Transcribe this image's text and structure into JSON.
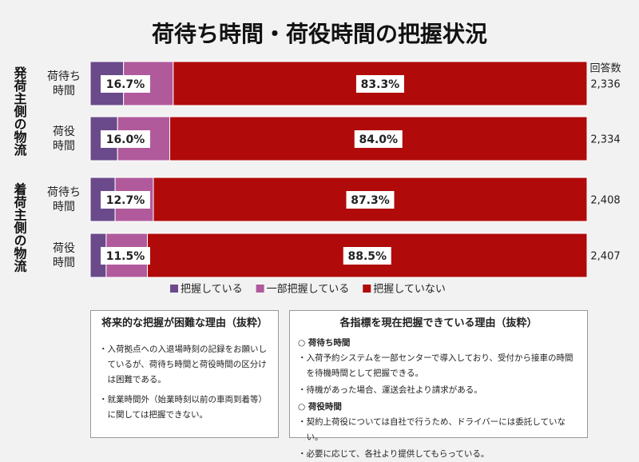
{
  "chart_data": {
    "type": "stacked_barh",
    "title": "荷待ち時間・荷役時間の把握状況",
    "groups": [
      {
        "label": "発荷主側の物流",
        "rows": [
          0,
          1
        ]
      },
      {
        "label": "着荷主側の物流",
        "rows": [
          2,
          3
        ]
      }
    ],
    "categories": [
      "荷待ち\n時間",
      "荷役\n時間",
      "荷待ち\n時間",
      "荷役\n時間"
    ],
    "series": [
      {
        "name": "把握している",
        "color": "#6a4a8a",
        "values": [
          6.7,
          5.5,
          5.0,
          3.2
        ]
      },
      {
        "name": "一部把握している",
        "color": "#b05a9c",
        "values": [
          10.0,
          10.5,
          7.7,
          8.3
        ]
      },
      {
        "name": "把握していない",
        "color": "#b00a0a",
        "values": [
          83.3,
          84.0,
          87.3,
          88.5
        ],
        "value_labels": [
          "83.3%",
          "84.0%",
          "87.3%",
          "88.5%"
        ]
      }
    ],
    "aware_total": {
      "values": [
        16.7,
        16.0,
        12.7,
        11.5
      ],
      "value_labels": [
        "16.7%",
        "16.0%",
        "12.7%",
        "11.5%"
      ]
    },
    "responses": {
      "label": "回答数",
      "values": [
        2336,
        2334,
        2408,
        2407
      ],
      "value_labels": [
        "2,336",
        "2,334",
        "2,408",
        "2,407"
      ]
    },
    "legend": "bottom"
  },
  "notes": {
    "left": {
      "title": "将来的な把握が困難な理由（抜粋）",
      "items": [
        "・入荷拠点への入退場時刻の記録をお願いしているが、荷待ち時間と荷役時間の区分けは困難である。",
        "・就業時間外（始業時刻以前の車両到着等）に関しては把握できない。"
      ]
    },
    "right": {
      "title": "各指標を現在把握できている理由（抜粋）",
      "sections": [
        {
          "heading": "○ 荷待ち時間",
          "items": [
            "・入荷予約システムを一部センターで導入しており、受付から接車の時間を待機時間として把握できる。",
            "・待機があった場合、運送会社より請求がある。"
          ]
        },
        {
          "heading": "○ 荷役時間",
          "items": [
            "・契約上荷役については自社で行うため、ドライバーには委託していない。",
            "・必要に応じて、各社より提供してもらっている。"
          ]
        }
      ]
    }
  }
}
